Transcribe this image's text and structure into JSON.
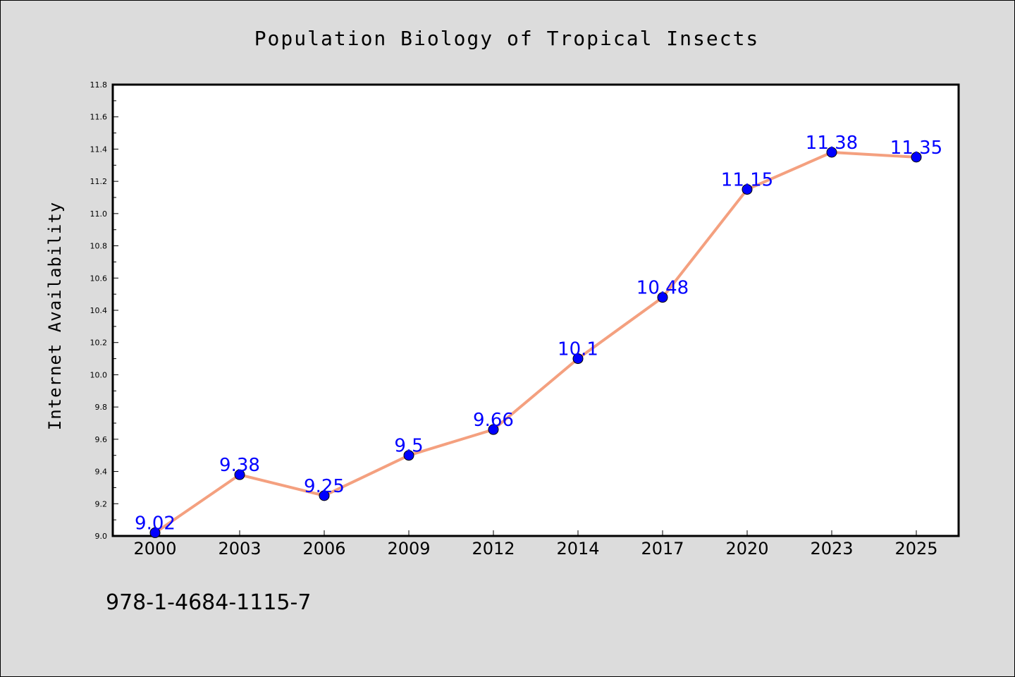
{
  "chart_data": {
    "type": "line",
    "title": "Population Biology of Tropical Insects",
    "xlabel": "",
    "ylabel": "Internet Availability",
    "categories": [
      "2000",
      "2003",
      "2006",
      "2009",
      "2012",
      "2014",
      "2017",
      "2020",
      "2023",
      "2025"
    ],
    "series": [
      {
        "values": [
          9.02,
          9.38,
          9.25,
          9.5,
          9.66,
          10.1,
          10.48,
          11.15,
          11.38,
          11.35
        ],
        "labels": [
          "9.02",
          "9.38",
          "9.25",
          "9.5",
          "9.66",
          "10.1",
          "10.48",
          "11.15",
          "11.38",
          "11.35"
        ],
        "line_color": "#f4a07f",
        "marker_color": "#0000ff"
      }
    ],
    "ylim": [
      9.0,
      11.8
    ],
    "yticks": [
      "9.0",
      "9.2",
      "9.4",
      "9.6",
      "9.8",
      "10.0",
      "10.2",
      "10.4",
      "10.6",
      "10.8",
      "11.0",
      "11.2",
      "11.4",
      "11.6",
      "11.8"
    ],
    "grid": false,
    "legend": "none"
  },
  "footer": {
    "isbn": "978-1-4684-1115-7"
  }
}
